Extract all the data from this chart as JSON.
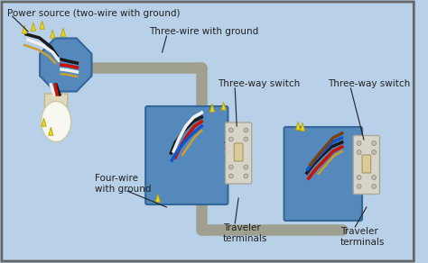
{
  "bg_color": "#b8d0e8",
  "border_color": "#777777",
  "labels": {
    "power_source": "Power source (two-wire with ground)",
    "three_wire": "Three-wire with ground",
    "four_wire": "Four-wire\nwith ground",
    "switch1_label": "Three-way switch",
    "switch2_label": "Three-way switch",
    "traveler1": "Traveler\nterminals",
    "traveler2": "Traveler\nterminals"
  },
  "box_color": "#5588bb",
  "box_edge": "#336699",
  "switch_face_color": "#e0ddd0",
  "switch_toggle_color": "#d8cc98",
  "wire_colors": {
    "black": "#1a1a1a",
    "white": "#f0f0f0",
    "red": "#cc1100",
    "blue": "#1155cc",
    "bare": "#c8a030",
    "gray": "#888888",
    "brown": "#7a4010"
  },
  "conduit_color": "#a0a090",
  "wirecap_color": "#e8d820"
}
